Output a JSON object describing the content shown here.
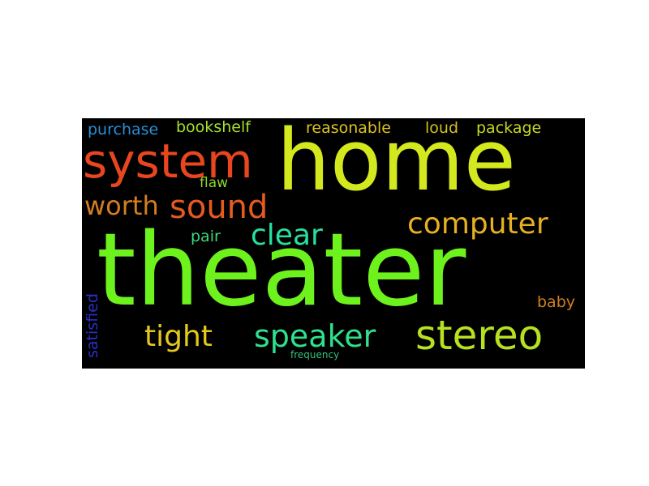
{
  "background_color": "#000000",
  "words": [
    {
      "text": "theater",
      "color": "#6ef21e"
    },
    {
      "text": "home",
      "color": "#d4e81e"
    },
    {
      "text": "system",
      "color": "#e8461e"
    },
    {
      "text": "stereo",
      "color": "#b6e020"
    },
    {
      "text": "speaker",
      "color": "#2fe08c"
    },
    {
      "text": "computer",
      "color": "#e6b021"
    },
    {
      "text": "sound",
      "color": "#e55a1f"
    },
    {
      "text": "worth",
      "color": "#d47d22"
    },
    {
      "text": "clear",
      "color": "#27e0a0"
    },
    {
      "text": "tight",
      "color": "#e3c91f"
    },
    {
      "text": "reasonable",
      "color": "#dcc41f"
    },
    {
      "text": "loud",
      "color": "#d1c31f"
    },
    {
      "text": "package",
      "color": "#c8d821"
    },
    {
      "text": "purchase",
      "color": "#2a8fd8"
    },
    {
      "text": "bookshelf",
      "color": "#a6e02a"
    },
    {
      "text": "flaw",
      "color": "#8fd62a"
    },
    {
      "text": "pair",
      "color": "#3ed67a"
    },
    {
      "text": "satisfied",
      "color": "#2b2fc9"
    },
    {
      "text": "baby",
      "color": "#d0801f"
    },
    {
      "text": "frequency",
      "color": "#2fc27a"
    }
  ]
}
